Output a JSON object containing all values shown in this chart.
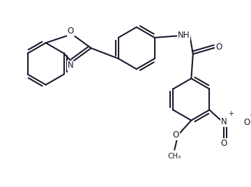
{
  "bg_color": "#ffffff",
  "line_color": "#1a1a2e",
  "line_width": 1.5,
  "dbo": 0.08,
  "figsize": [
    3.6,
    2.68
  ],
  "dpi": 100,
  "xlim": [
    -0.5,
    9.5
  ],
  "ylim": [
    -1.5,
    5.5
  ]
}
